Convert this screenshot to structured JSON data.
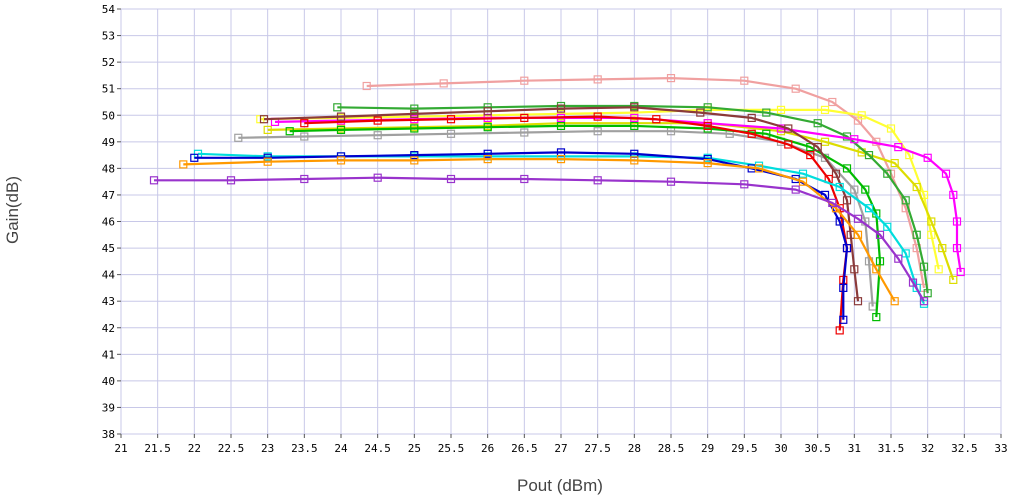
{
  "chart_data": {
    "type": "line",
    "title": "",
    "xlabel": "Pout (dBm)",
    "ylabel": "Gain(dB)",
    "xlim": [
      21,
      33
    ],
    "ylim": [
      38,
      54
    ],
    "x_ticks": [
      "21",
      "21.5",
      "22",
      "22.5",
      "23",
      "23.5",
      "24",
      "24.5",
      "25",
      "25.5",
      "26",
      "26.5",
      "27",
      "27.5",
      "28",
      "28.5",
      "29",
      "29.5",
      "30",
      "30.5",
      "31",
      "31.5",
      "32",
      "32.5",
      "33"
    ],
    "y_ticks": [
      "38",
      "39",
      "40",
      "41",
      "42",
      "43",
      "44",
      "45",
      "46",
      "47",
      "48",
      "49",
      "50",
      "51",
      "52",
      "53",
      "54"
    ],
    "grid": true,
    "legend": "none",
    "series": [
      {
        "color": "#F0A0A0",
        "points": [
          [
            24.35,
            51.1
          ],
          [
            25.4,
            51.2
          ],
          [
            26.5,
            51.3
          ],
          [
            27.5,
            51.35
          ],
          [
            28.5,
            51.4
          ],
          [
            29.5,
            51.3
          ],
          [
            30.2,
            51.0
          ],
          [
            30.7,
            50.5
          ],
          [
            31.05,
            49.8
          ],
          [
            31.3,
            49.0
          ],
          [
            31.5,
            47.8
          ],
          [
            31.7,
            46.5
          ],
          [
            31.85,
            45.0
          ],
          [
            31.95,
            43.5
          ]
        ]
      },
      {
        "color": "#FFFF33",
        "points": [
          [
            22.9,
            49.85
          ],
          [
            24.0,
            49.9
          ],
          [
            25.0,
            49.95
          ],
          [
            26.0,
            50.0
          ],
          [
            27.0,
            50.05
          ],
          [
            28.0,
            50.1
          ],
          [
            29.0,
            50.2
          ],
          [
            30.0,
            50.2
          ],
          [
            30.6,
            50.2
          ],
          [
            31.1,
            50.0
          ],
          [
            31.5,
            49.5
          ],
          [
            31.75,
            48.5
          ],
          [
            31.95,
            47.0
          ],
          [
            32.05,
            45.5
          ],
          [
            32.15,
            44.2
          ]
        ]
      },
      {
        "color": "#DDDD00",
        "points": [
          [
            23.0,
            49.45
          ],
          [
            24.0,
            49.5
          ],
          [
            25.0,
            49.55
          ],
          [
            26.0,
            49.6
          ],
          [
            27.0,
            49.7
          ],
          [
            28.0,
            49.7
          ],
          [
            29.0,
            49.7
          ],
          [
            30.0,
            49.4
          ],
          [
            30.6,
            49.0
          ],
          [
            31.1,
            48.6
          ],
          [
            31.55,
            48.2
          ],
          [
            31.85,
            47.3
          ],
          [
            32.05,
            46.0
          ],
          [
            32.2,
            45.0
          ],
          [
            32.35,
            43.8
          ]
        ]
      },
      {
        "color": "#33AA33",
        "points": [
          [
            23.95,
            50.3
          ],
          [
            25.0,
            50.25
          ],
          [
            26.0,
            50.3
          ],
          [
            27.0,
            50.35
          ],
          [
            28.0,
            50.35
          ],
          [
            29.0,
            50.3
          ],
          [
            29.8,
            50.1
          ],
          [
            30.5,
            49.7
          ],
          [
            30.9,
            49.2
          ],
          [
            31.2,
            48.5
          ],
          [
            31.45,
            47.8
          ],
          [
            31.7,
            46.8
          ],
          [
            31.85,
            45.5
          ],
          [
            31.95,
            44.3
          ],
          [
            32.0,
            43.3
          ]
        ]
      },
      {
        "color": "#A0A0A0",
        "points": [
          [
            22.6,
            49.15
          ],
          [
            23.5,
            49.2
          ],
          [
            24.5,
            49.25
          ],
          [
            25.5,
            49.3
          ],
          [
            26.5,
            49.35
          ],
          [
            27.5,
            49.4
          ],
          [
            28.5,
            49.4
          ],
          [
            29.3,
            49.3
          ],
          [
            30.0,
            49.0
          ],
          [
            30.6,
            48.4
          ],
          [
            31.0,
            47.2
          ],
          [
            31.15,
            46.0
          ],
          [
            31.2,
            44.5
          ],
          [
            31.25,
            42.8
          ]
        ]
      },
      {
        "color": "#00BB00",
        "points": [
          [
            23.3,
            49.4
          ],
          [
            24.0,
            49.45
          ],
          [
            25.0,
            49.5
          ],
          [
            26.0,
            49.55
          ],
          [
            27.0,
            49.6
          ],
          [
            28.0,
            49.6
          ],
          [
            29.0,
            49.5
          ],
          [
            29.8,
            49.3
          ],
          [
            30.4,
            48.8
          ],
          [
            30.9,
            48.0
          ],
          [
            31.15,
            47.2
          ],
          [
            31.3,
            46.3
          ],
          [
            31.35,
            44.5
          ],
          [
            31.3,
            42.4
          ]
        ]
      },
      {
        "color": "#FF00FF",
        "points": [
          [
            23.1,
            49.75
          ],
          [
            24.0,
            49.8
          ],
          [
            25.0,
            49.85
          ],
          [
            26.0,
            49.9
          ],
          [
            27.0,
            49.9
          ],
          [
            28.0,
            49.9
          ],
          [
            29.0,
            49.7
          ],
          [
            30.0,
            49.5
          ],
          [
            31.0,
            49.1
          ],
          [
            31.6,
            48.8
          ],
          [
            32.0,
            48.4
          ],
          [
            32.25,
            47.8
          ],
          [
            32.35,
            47.0
          ],
          [
            32.4,
            46.0
          ],
          [
            32.4,
            45.0
          ],
          [
            32.45,
            44.1
          ]
        ]
      },
      {
        "color": "#8B3A3A",
        "points": [
          [
            22.95,
            49.85
          ],
          [
            24.0,
            49.95
          ],
          [
            25.0,
            50.05
          ],
          [
            26.0,
            50.15
          ],
          [
            27.0,
            50.25
          ],
          [
            28.0,
            50.3
          ],
          [
            28.9,
            50.1
          ],
          [
            29.6,
            49.9
          ],
          [
            30.1,
            49.5
          ],
          [
            30.5,
            48.8
          ],
          [
            30.75,
            47.8
          ],
          [
            30.9,
            46.8
          ],
          [
            30.95,
            45.5
          ],
          [
            31.0,
            44.2
          ],
          [
            31.05,
            43.0
          ]
        ]
      },
      {
        "color": "#EE0000",
        "points": [
          [
            23.5,
            49.7
          ],
          [
            24.5,
            49.8
          ],
          [
            25.5,
            49.85
          ],
          [
            26.5,
            49.9
          ],
          [
            27.5,
            49.95
          ],
          [
            28.3,
            49.85
          ],
          [
            29.0,
            49.6
          ],
          [
            29.6,
            49.3
          ],
          [
            30.1,
            48.9
          ],
          [
            30.4,
            48.5
          ],
          [
            30.65,
            47.6
          ],
          [
            30.8,
            46.5
          ],
          [
            30.9,
            45.0
          ],
          [
            30.85,
            43.8
          ],
          [
            30.8,
            41.9
          ]
        ]
      },
      {
        "color": "#00DDDD",
        "points": [
          [
            22.05,
            48.55
          ],
          [
            23.0,
            48.45
          ],
          [
            24.0,
            48.45
          ],
          [
            25.0,
            48.45
          ],
          [
            26.0,
            48.45
          ],
          [
            27.0,
            48.45
          ],
          [
            28.0,
            48.45
          ],
          [
            29.0,
            48.4
          ],
          [
            29.7,
            48.1
          ],
          [
            30.3,
            47.8
          ],
          [
            30.8,
            47.3
          ],
          [
            31.2,
            46.5
          ],
          [
            31.45,
            45.8
          ],
          [
            31.7,
            44.8
          ],
          [
            31.85,
            43.5
          ],
          [
            31.95,
            42.9
          ]
        ]
      },
      {
        "color": "#0000CC",
        "points": [
          [
            22.0,
            48.4
          ],
          [
            23.0,
            48.4
          ],
          [
            24.0,
            48.45
          ],
          [
            25.0,
            48.5
          ],
          [
            26.0,
            48.55
          ],
          [
            27.0,
            48.6
          ],
          [
            28.0,
            48.55
          ],
          [
            29.0,
            48.35
          ],
          [
            29.6,
            48.0
          ],
          [
            30.2,
            47.6
          ],
          [
            30.6,
            47.0
          ],
          [
            30.8,
            46.0
          ],
          [
            30.9,
            45.0
          ],
          [
            30.85,
            43.5
          ],
          [
            30.85,
            42.3
          ]
        ]
      },
      {
        "color": "#FF9900",
        "points": [
          [
            21.85,
            48.15
          ],
          [
            23.0,
            48.25
          ],
          [
            24.0,
            48.3
          ],
          [
            25.0,
            48.3
          ],
          [
            26.0,
            48.35
          ],
          [
            27.0,
            48.35
          ],
          [
            28.0,
            48.3
          ],
          [
            29.0,
            48.2
          ],
          [
            29.7,
            48.0
          ],
          [
            30.3,
            47.5
          ],
          [
            30.75,
            46.5
          ],
          [
            31.05,
            45.5
          ],
          [
            31.3,
            44.2
          ],
          [
            31.55,
            43.0
          ]
        ]
      },
      {
        "color": "#9933CC",
        "points": [
          [
            21.45,
            47.55
          ],
          [
            22.5,
            47.55
          ],
          [
            23.5,
            47.6
          ],
          [
            24.5,
            47.65
          ],
          [
            25.5,
            47.6
          ],
          [
            26.5,
            47.6
          ],
          [
            27.5,
            47.55
          ],
          [
            28.5,
            47.5
          ],
          [
            29.5,
            47.4
          ],
          [
            30.2,
            47.2
          ],
          [
            30.7,
            46.7
          ],
          [
            31.05,
            46.1
          ],
          [
            31.35,
            45.5
          ],
          [
            31.6,
            44.6
          ],
          [
            31.8,
            43.7
          ],
          [
            31.95,
            43.0
          ]
        ]
      }
    ]
  }
}
